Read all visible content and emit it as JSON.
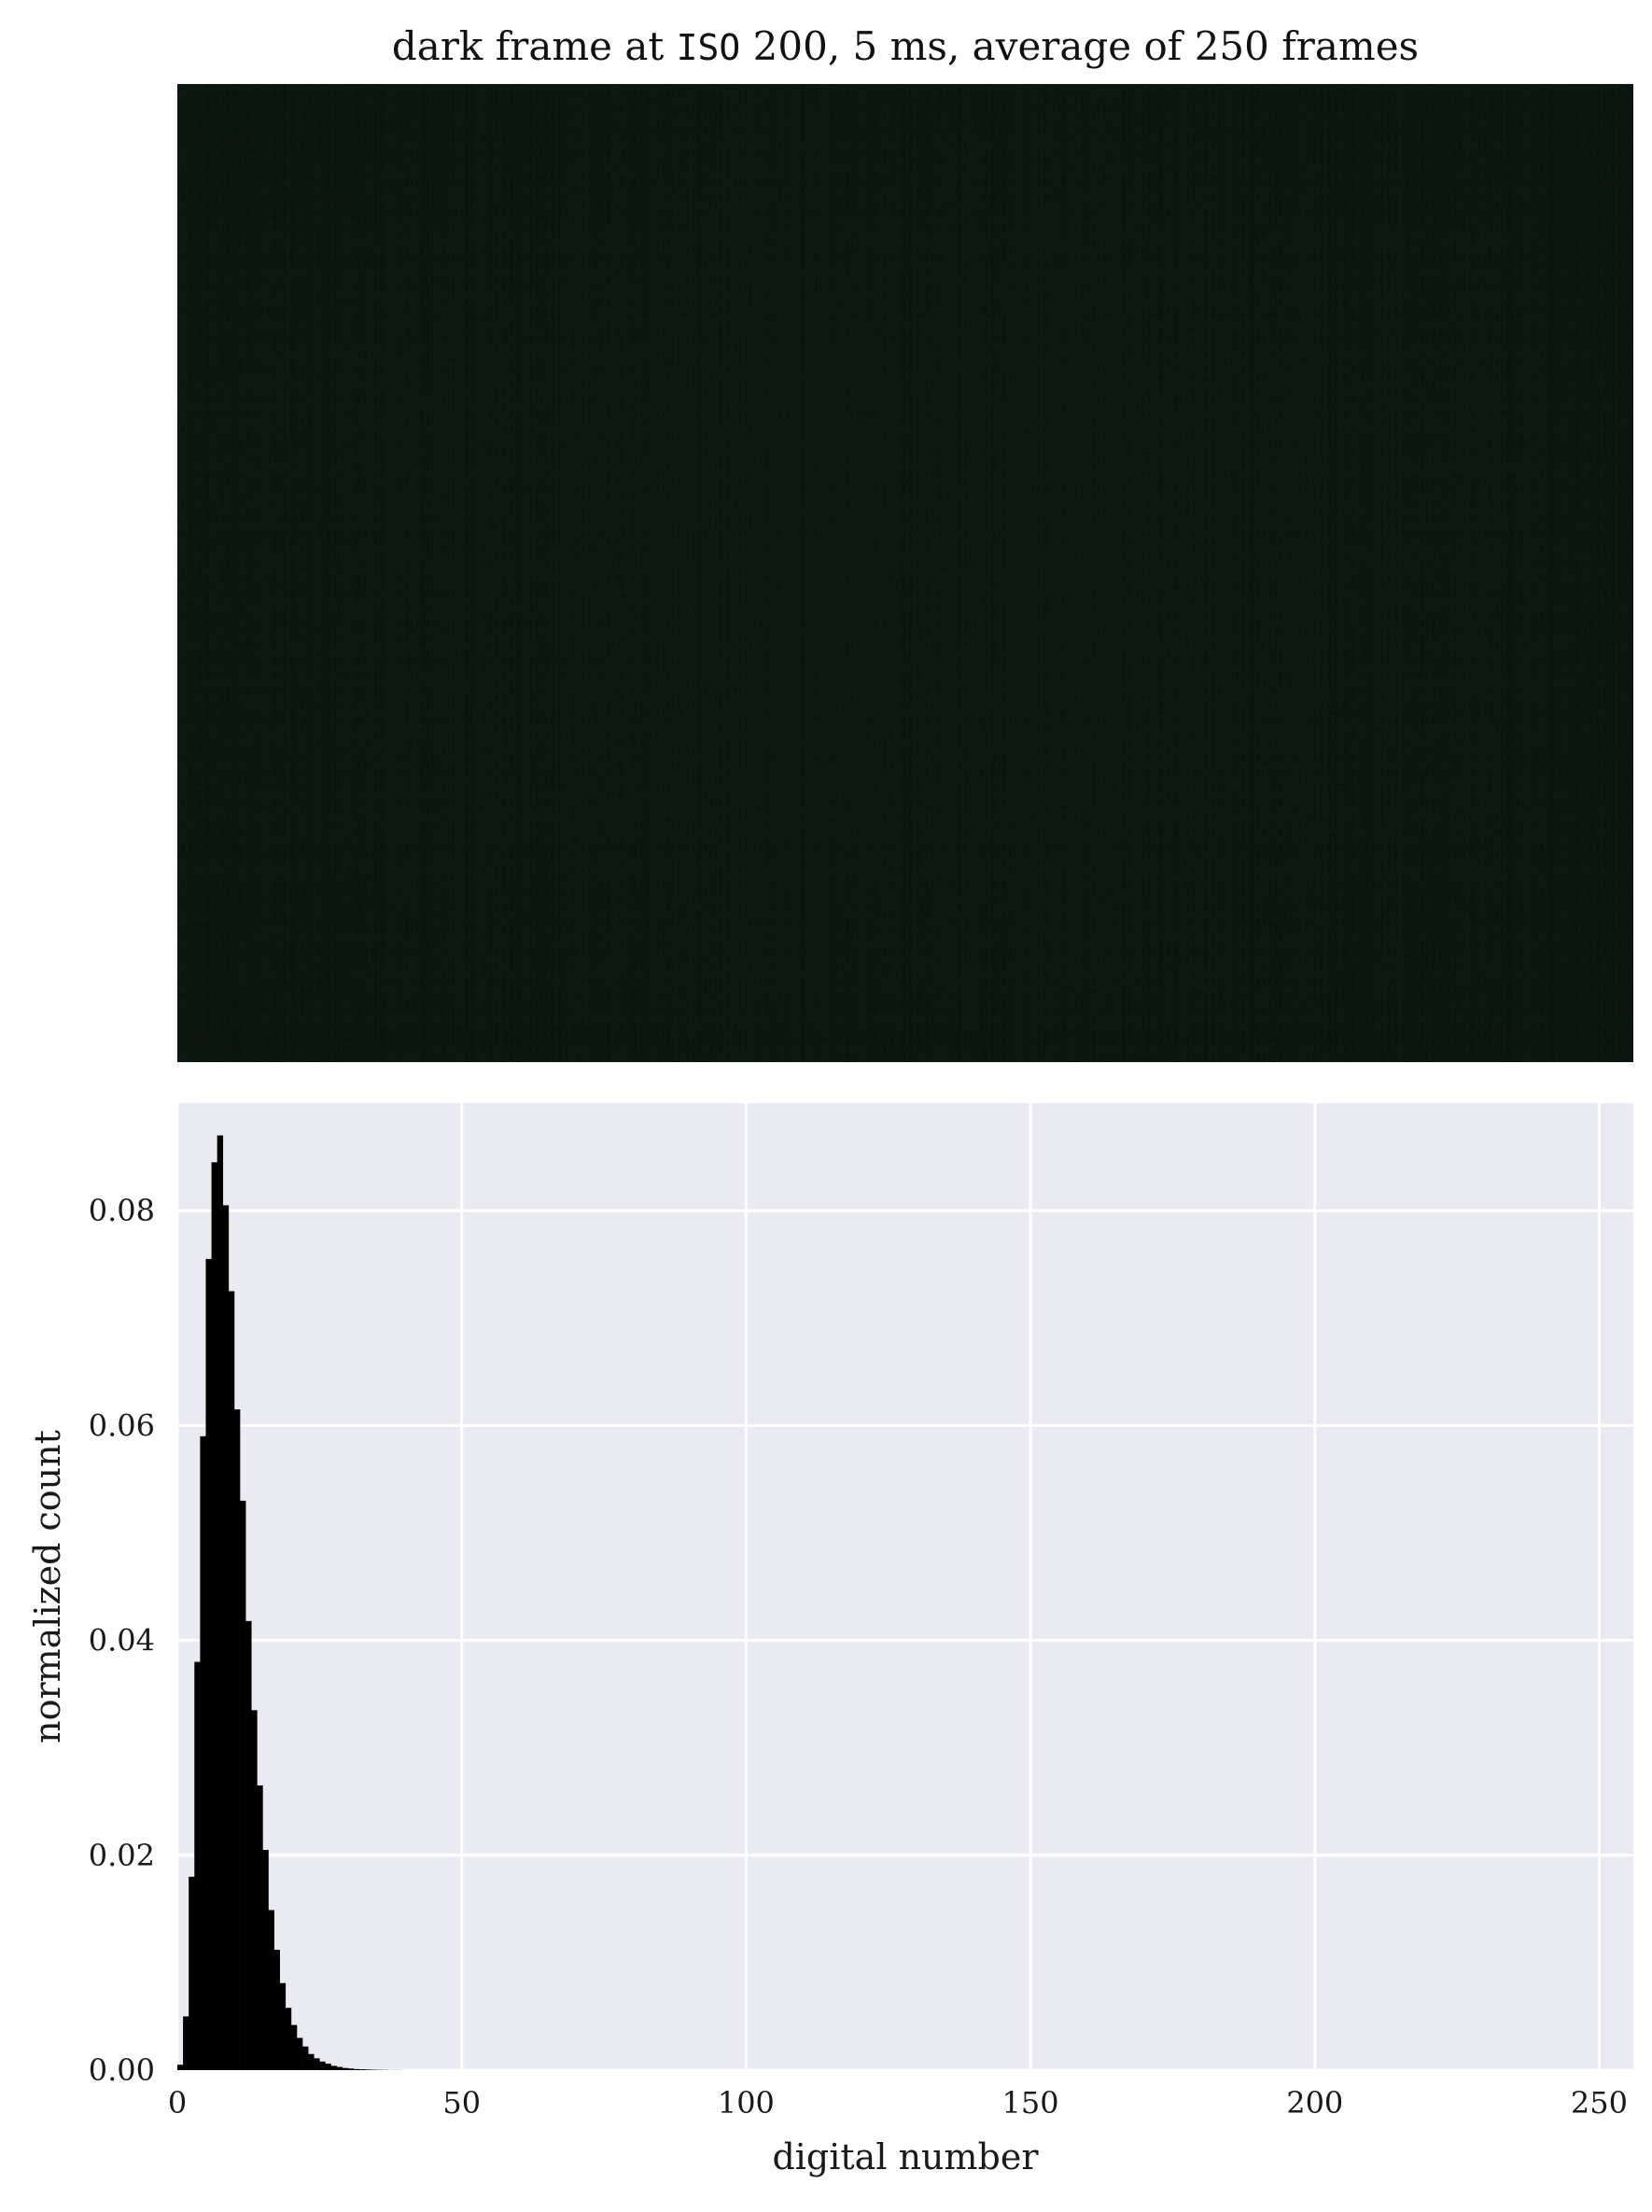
{
  "title": {
    "prefix": "dark frame at ",
    "iso": "ISO",
    "suffix": " 200, 5 ms, average of 250 frames"
  },
  "colors": {
    "frame_base": "#0f1a12",
    "plot_background": "#eaeaf2",
    "grid": "#ffffff",
    "bars": "#000000"
  },
  "chart_data": [
    {
      "type": "image",
      "description_visible": "averaged dark frame (very dark greenish-black image)"
    },
    {
      "type": "bar",
      "title": "",
      "xlabel": "digital number",
      "ylabel": "normalized count",
      "xlim": [
        0,
        256
      ],
      "ylim": [
        0,
        0.09
      ],
      "xticks": [
        0,
        50,
        100,
        150,
        200,
        250
      ],
      "yticks": [
        0.0,
        0.02,
        0.04,
        0.06,
        0.08
      ],
      "xtick_labels": [
        "0",
        "50",
        "100",
        "150",
        "200",
        "250"
      ],
      "ytick_labels": [
        "0.00",
        "0.02",
        "0.04",
        "0.06",
        "0.08"
      ],
      "grid": true,
      "bin_width": 1,
      "x": [
        0,
        1,
        2,
        3,
        4,
        5,
        6,
        7,
        8,
        9,
        10,
        11,
        12,
        13,
        14,
        15,
        16,
        17,
        18,
        19,
        20,
        21,
        22,
        23,
        24,
        25,
        26,
        27,
        28,
        29,
        30,
        31,
        32,
        33,
        34,
        35,
        36,
        37,
        38,
        39
      ],
      "values": [
        0.0005,
        0.005,
        0.018,
        0.038,
        0.059,
        0.0755,
        0.0845,
        0.087,
        0.0805,
        0.0725,
        0.0615,
        0.053,
        0.0418,
        0.0335,
        0.0265,
        0.0205,
        0.0149,
        0.0112,
        0.0081,
        0.0058,
        0.0042,
        0.003,
        0.0022,
        0.0015,
        0.0011,
        0.0008,
        0.0006,
        0.0004,
        0.0003,
        0.0002,
        0.00015,
        0.0001,
        8e-05,
        6e-05,
        4e-05,
        3e-05,
        2e-05,
        1e-05,
        1e-05,
        5e-06
      ]
    }
  ]
}
